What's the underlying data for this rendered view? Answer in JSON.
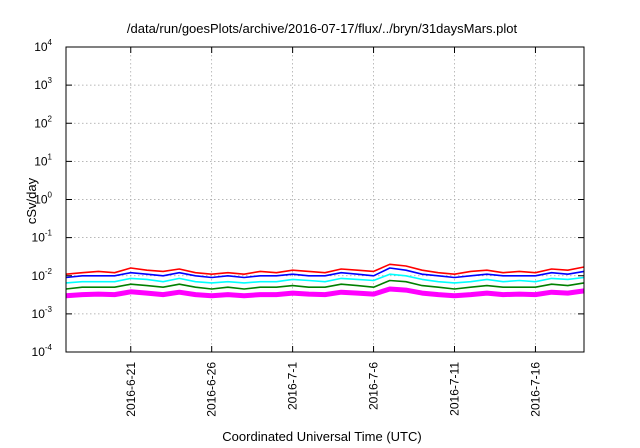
{
  "chart_data": {
    "type": "line",
    "title": "/data/run/goesPlots/archive/2016-07-17/flux/../bryn/31daysMars.plot",
    "xlabel": "Coordinated Universal Time (UTC)",
    "ylabel": "cSv/day",
    "y_scale": "log",
    "ylim": [
      0.0001,
      10000
    ],
    "y_ticks": [
      {
        "base": "10",
        "exp": "-4",
        "value": 0.0001
      },
      {
        "base": "10",
        "exp": "-3",
        "value": 0.001
      },
      {
        "base": "10",
        "exp": "-2",
        "value": 0.01
      },
      {
        "base": "10",
        "exp": "-1",
        "value": 0.1
      },
      {
        "base": "10",
        "exp": "0",
        "value": 1
      },
      {
        "base": "10",
        "exp": "1",
        "value": 10
      },
      {
        "base": "10",
        "exp": "2",
        "value": 100
      },
      {
        "base": "10",
        "exp": "3",
        "value": 1000
      },
      {
        "base": "10",
        "exp": "4",
        "value": 10000
      }
    ],
    "xlim": [
      "2016-06-17",
      "2016-07-19"
    ],
    "x_ticks": [
      "2016-6-21",
      "2016-6-26",
      "2016-7-1",
      "2016-7-6",
      "2016-7-11",
      "2016-7-16"
    ],
    "x_tick_dates": [
      "2016-06-21",
      "2016-06-26",
      "2016-07-01",
      "2016-07-06",
      "2016-07-11",
      "2016-07-16"
    ],
    "grid": true,
    "x_dates": [
      "2016-06-17",
      "2016-06-18",
      "2016-06-19",
      "2016-06-20",
      "2016-06-21",
      "2016-06-22",
      "2016-06-23",
      "2016-06-24",
      "2016-06-25",
      "2016-06-26",
      "2016-06-27",
      "2016-06-28",
      "2016-06-29",
      "2016-06-30",
      "2016-07-01",
      "2016-07-02",
      "2016-07-03",
      "2016-07-04",
      "2016-07-05",
      "2016-07-06",
      "2016-07-07",
      "2016-07-08",
      "2016-07-09",
      "2016-07-10",
      "2016-07-11",
      "2016-07-12",
      "2016-07-13",
      "2016-07-14",
      "2016-07-15",
      "2016-07-16",
      "2016-07-17",
      "2016-07-18",
      "2016-07-19"
    ],
    "series": [
      {
        "color": "#ff0000",
        "values": [
          0.011,
          0.012,
          0.013,
          0.012,
          0.016,
          0.014,
          0.013,
          0.015,
          0.012,
          0.011,
          0.012,
          0.011,
          0.013,
          0.012,
          0.014,
          0.013,
          0.012,
          0.015,
          0.014,
          0.013,
          0.02,
          0.018,
          0.014,
          0.012,
          0.011,
          0.013,
          0.014,
          0.012,
          0.013,
          0.012,
          0.015,
          0.014,
          0.017
        ]
      },
      {
        "color": "#0000ff",
        "values": [
          0.009,
          0.01,
          0.01,
          0.01,
          0.012,
          0.011,
          0.01,
          0.012,
          0.01,
          0.009,
          0.01,
          0.009,
          0.01,
          0.01,
          0.011,
          0.01,
          0.01,
          0.012,
          0.011,
          0.01,
          0.016,
          0.014,
          0.011,
          0.01,
          0.009,
          0.01,
          0.011,
          0.01,
          0.01,
          0.01,
          0.012,
          0.011,
          0.013
        ]
      },
      {
        "color": "#00ffff",
        "values": [
          0.0065,
          0.007,
          0.007,
          0.007,
          0.0085,
          0.008,
          0.007,
          0.0085,
          0.007,
          0.0065,
          0.007,
          0.0065,
          0.007,
          0.007,
          0.008,
          0.0075,
          0.007,
          0.0085,
          0.008,
          0.0075,
          0.011,
          0.01,
          0.008,
          0.007,
          0.0065,
          0.007,
          0.008,
          0.007,
          0.0075,
          0.007,
          0.0085,
          0.008,
          0.009
        ]
      },
      {
        "color": "#008000",
        "values": [
          0.0045,
          0.005,
          0.005,
          0.005,
          0.006,
          0.0055,
          0.005,
          0.006,
          0.005,
          0.0045,
          0.005,
          0.0045,
          0.005,
          0.005,
          0.0055,
          0.005,
          0.005,
          0.006,
          0.0055,
          0.005,
          0.0075,
          0.007,
          0.0055,
          0.005,
          0.0045,
          0.005,
          0.0055,
          0.005,
          0.005,
          0.005,
          0.006,
          0.0055,
          0.0065
        ]
      },
      {
        "color": "#ff00ff",
        "values": [
          0.003,
          0.0032,
          0.0033,
          0.0032,
          0.0038,
          0.0035,
          0.0032,
          0.0037,
          0.0032,
          0.003,
          0.0032,
          0.003,
          0.0032,
          0.0032,
          0.0035,
          0.0033,
          0.0032,
          0.0037,
          0.0035,
          0.0033,
          0.0045,
          0.0042,
          0.0035,
          0.0032,
          0.003,
          0.0032,
          0.0035,
          0.0032,
          0.0033,
          0.0032,
          0.0037,
          0.0035,
          0.004
        ]
      }
    ]
  }
}
